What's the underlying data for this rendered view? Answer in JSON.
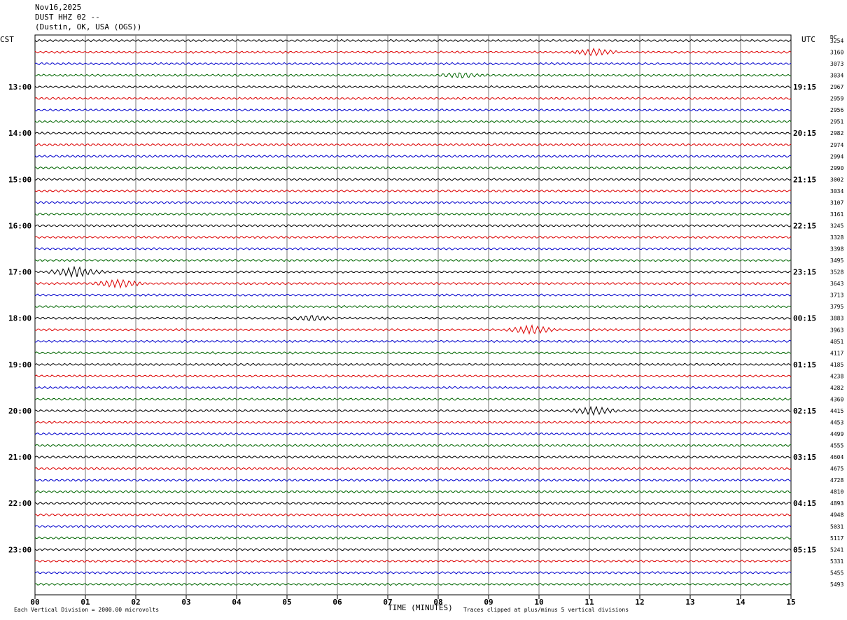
{
  "header": {
    "date": "Nov16,2025",
    "station": "DUST HHZ 02 --",
    "location": "(Dustin, OK, USA  (OGS))"
  },
  "left_zone_label": "CST",
  "right_zone_label": "UTC",
  "dc_label": "DC",
  "footer": {
    "scale_note": "Each Vertical Division = 2000.00 microvolts",
    "axis_title": "TIME (MINUTES)",
    "clip_note": "Traces clipped at plus/minus 5 vertical divisions"
  },
  "chart_data": {
    "type": "line",
    "title": "",
    "xlabel": "TIME (MINUTES)",
    "xlim": [
      0,
      15
    ],
    "x_ticks": [
      "00",
      "01",
      "02",
      "03",
      "04",
      "05",
      "06",
      "07",
      "08",
      "09",
      "10",
      "11",
      "12",
      "13",
      "14",
      "15"
    ],
    "trace_colors": [
      "#000000",
      "#dd0000",
      "#0000cc",
      "#006600"
    ],
    "left_hour_labels": [
      "13:00",
      "14:00",
      "15:00",
      "16:00",
      "17:00",
      "18:00",
      "19:00",
      "20:00",
      "21:00",
      "22:00",
      "23:00"
    ],
    "right_hour_labels": [
      "19:15",
      "20:15",
      "21:15",
      "22:15",
      "23:15",
      "00:15",
      "01:15",
      "02:15",
      "03:15",
      "04:15",
      "05:15"
    ],
    "dc_offsets": [
      3254,
      3160,
      3073,
      3034,
      2967,
      2959,
      2956,
      2951,
      2982,
      2974,
      2994,
      2990,
      3002,
      3034,
      3107,
      3161,
      3245,
      3328,
      3398,
      3495,
      3528,
      3643,
      3713,
      3795,
      3883,
      3963,
      4051,
      4117,
      4185,
      4238,
      4282,
      4360,
      4415,
      4453,
      4499,
      4555,
      4604,
      4675,
      4728,
      4810,
      4893,
      4948,
      5031,
      5117,
      5241,
      5331,
      5455,
      5493
    ],
    "events": [
      {
        "trace": 1,
        "start_min": 10.6,
        "end_min": 11.6,
        "amplitude": 4
      },
      {
        "trace": 3,
        "start_min": 7.9,
        "end_min": 9.0,
        "amplitude": 3
      },
      {
        "trace": 20,
        "start_min": 0.2,
        "end_min": 1.4,
        "amplitude": 6
      },
      {
        "trace": 21,
        "start_min": 1.1,
        "end_min": 2.2,
        "amplitude": 5
      },
      {
        "trace": 24,
        "start_min": 5.0,
        "end_min": 6.0,
        "amplitude": 3
      },
      {
        "trace": 25,
        "start_min": 9.3,
        "end_min": 10.4,
        "amplitude": 5
      },
      {
        "trace": 32,
        "start_min": 10.6,
        "end_min": 11.6,
        "amplitude": 5
      }
    ]
  }
}
